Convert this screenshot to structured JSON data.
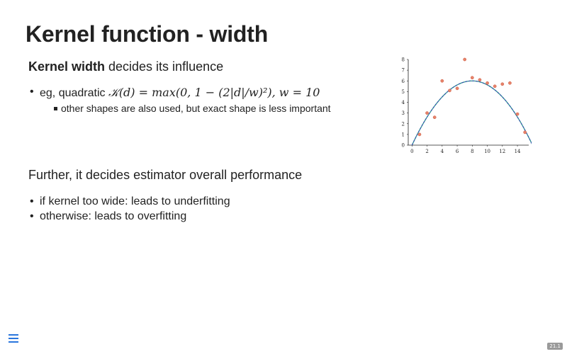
{
  "slide": {
    "title": "Kernel function - width",
    "lead_bold": "Kernel width",
    "lead_rest": " decides its influence",
    "bullet1_prefix": "eg, quadratic ",
    "bullet1_math": "𝒦(d) = max(0, 1 − (2|d|/w)²), w = 10",
    "sub_bullet": "other shapes are also used, but exact shape is less important",
    "lead2": "Further, it decides estimator overall performance",
    "bullets2": [
      "if kernel too wide: leads to underfitting",
      "otherwise: leads to overfitting"
    ],
    "slide_number": "21.1"
  },
  "chart_data": {
    "type": "scatter",
    "x_ticks": [
      "0",
      "2",
      "4",
      "6",
      "8",
      "10",
      "12",
      "14"
    ],
    "y_ticks": [
      "0",
      "1",
      "2",
      "3",
      "4",
      "5",
      "6",
      "7",
      "8"
    ],
    "xlim": [
      -0.5,
      15.5
    ],
    "ylim": [
      0,
      8
    ],
    "points": [
      {
        "x": 1,
        "y": 1.0
      },
      {
        "x": 2,
        "y": 3.0
      },
      {
        "x": 3,
        "y": 2.6
      },
      {
        "x": 4,
        "y": 6.0
      },
      {
        "x": 5,
        "y": 5.1
      },
      {
        "x": 6,
        "y": 5.3
      },
      {
        "x": 7,
        "y": 8.0
      },
      {
        "x": 8,
        "y": 6.3
      },
      {
        "x": 9,
        "y": 6.1
      },
      {
        "x": 10,
        "y": 5.8
      },
      {
        "x": 11,
        "y": 5.5
      },
      {
        "x": 12,
        "y": 5.7
      },
      {
        "x": 13,
        "y": 5.8
      },
      {
        "x": 14,
        "y": 2.9
      },
      {
        "x": 15,
        "y": 1.2
      }
    ],
    "curve": {
      "type": "quadratic",
      "peak_x": 8,
      "peak_y": 6.0,
      "zero_x": [
        0,
        16
      ]
    },
    "point_color": "#e8836b",
    "curve_colors": [
      "#2f9e8f",
      "#3a4fb0"
    ]
  }
}
